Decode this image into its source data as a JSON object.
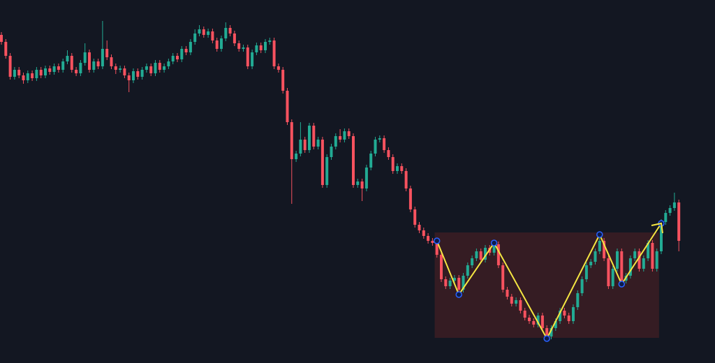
{
  "chart_data": {
    "type": "candlestick",
    "up_color": "#22ab94",
    "down_color": "#f7525f",
    "ylim": [
      0,
      520
    ],
    "candles": [
      [
        470,
        474,
        456,
        460
      ],
      [
        460,
        464,
        436,
        440
      ],
      [
        440,
        444,
        406,
        410
      ],
      [
        410,
        424,
        406,
        420
      ],
      [
        420,
        424,
        408,
        412
      ],
      [
        412,
        416,
        400,
        405
      ],
      [
        405,
        419,
        401,
        415
      ],
      [
        415,
        419,
        404,
        408
      ],
      [
        408,
        424,
        404,
        420
      ],
      [
        420,
        424,
        408,
        412
      ],
      [
        412,
        426,
        408,
        422
      ],
      [
        422,
        426,
        413,
        417
      ],
      [
        417,
        429,
        413,
        425
      ],
      [
        425,
        429,
        416,
        420
      ],
      [
        420,
        436,
        416,
        432
      ],
      [
        432,
        448,
        428,
        440
      ],
      [
        440,
        444,
        416,
        420
      ],
      [
        420,
        424,
        411,
        415
      ],
      [
        415,
        434,
        411,
        430
      ],
      [
        430,
        458,
        426,
        445
      ],
      [
        445,
        449,
        416,
        420
      ],
      [
        420,
        436,
        416,
        432
      ],
      [
        432,
        436,
        421,
        425
      ],
      [
        425,
        490,
        421,
        450
      ],
      [
        450,
        462,
        434,
        438
      ],
      [
        438,
        442,
        421,
        425
      ],
      [
        425,
        429,
        414,
        420
      ],
      [
        420,
        426,
        416,
        422
      ],
      [
        422,
        426,
        408,
        412
      ],
      [
        412,
        416,
        388,
        405
      ],
      [
        405,
        422,
        401,
        418
      ],
      [
        418,
        422,
        406,
        410
      ],
      [
        410,
        424,
        406,
        420
      ],
      [
        420,
        429,
        416,
        425
      ],
      [
        425,
        429,
        411,
        415
      ],
      [
        415,
        434,
        411,
        430
      ],
      [
        430,
        434,
        416,
        420
      ],
      [
        420,
        429,
        416,
        425
      ],
      [
        425,
        436,
        421,
        432
      ],
      [
        432,
        444,
        428,
        440
      ],
      [
        440,
        444,
        431,
        435
      ],
      [
        435,
        454,
        431,
        450
      ],
      [
        450,
        454,
        441,
        445
      ],
      [
        445,
        464,
        441,
        460
      ],
      [
        460,
        478,
        456,
        472
      ],
      [
        472,
        484,
        468,
        478
      ],
      [
        478,
        482,
        466,
        470
      ],
      [
        470,
        479,
        466,
        475
      ],
      [
        475,
        479,
        458,
        462
      ],
      [
        462,
        466,
        446,
        450
      ],
      [
        450,
        469,
        446,
        465
      ],
      [
        465,
        488,
        461,
        480
      ],
      [
        480,
        484,
        468,
        472
      ],
      [
        472,
        476,
        454,
        458
      ],
      [
        458,
        462,
        446,
        450
      ],
      [
        450,
        456,
        446,
        452
      ],
      [
        452,
        456,
        421,
        425
      ],
      [
        425,
        449,
        421,
        445
      ],
      [
        445,
        459,
        441,
        455
      ],
      [
        455,
        459,
        444,
        448
      ],
      [
        448,
        464,
        444,
        460
      ],
      [
        460,
        466,
        456,
        462
      ],
      [
        462,
        466,
        421,
        425
      ],
      [
        425,
        429,
        416,
        420
      ],
      [
        420,
        424,
        386,
        390
      ],
      [
        390,
        394,
        341,
        345
      ],
      [
        345,
        349,
        228,
        292
      ],
      [
        292,
        304,
        288,
        300
      ],
      [
        300,
        345,
        296,
        320
      ],
      [
        320,
        324,
        301,
        305
      ],
      [
        305,
        344,
        301,
        340
      ],
      [
        340,
        344,
        306,
        310
      ],
      [
        310,
        324,
        306,
        320
      ],
      [
        320,
        324,
        251,
        255
      ],
      [
        255,
        299,
        251,
        295
      ],
      [
        295,
        314,
        291,
        310
      ],
      [
        310,
        329,
        306,
        325
      ],
      [
        325,
        335,
        316,
        320
      ],
      [
        320,
        336,
        316,
        332
      ],
      [
        332,
        336,
        321,
        325
      ],
      [
        325,
        329,
        251,
        255
      ],
      [
        255,
        264,
        251,
        260
      ],
      [
        260,
        264,
        232,
        250
      ],
      [
        250,
        284,
        246,
        280
      ],
      [
        280,
        304,
        276,
        300
      ],
      [
        300,
        324,
        296,
        320
      ],
      [
        320,
        326,
        316,
        322
      ],
      [
        322,
        326,
        301,
        305
      ],
      [
        305,
        309,
        291,
        295
      ],
      [
        295,
        299,
        271,
        275
      ],
      [
        275,
        286,
        271,
        282
      ],
      [
        282,
        286,
        271,
        275
      ],
      [
        275,
        279,
        246,
        250
      ],
      [
        250,
        254,
        216,
        220
      ],
      [
        220,
        224,
        194,
        198
      ],
      [
        198,
        202,
        186,
        190
      ],
      [
        190,
        194,
        178,
        182
      ],
      [
        182,
        186,
        171,
        175
      ],
      [
        175,
        179,
        168,
        172
      ],
      [
        172,
        176,
        151,
        155
      ],
      [
        155,
        159,
        116,
        120
      ],
      [
        120,
        124,
        106,
        110
      ],
      [
        110,
        122,
        106,
        118
      ],
      [
        118,
        126,
        114,
        122
      ],
      [
        122,
        126,
        101,
        105
      ],
      [
        105,
        129,
        101,
        125
      ],
      [
        125,
        144,
        121,
        140
      ],
      [
        140,
        154,
        136,
        150
      ],
      [
        150,
        164,
        146,
        160
      ],
      [
        160,
        164,
        144,
        148
      ],
      [
        148,
        169,
        144,
        165
      ],
      [
        165,
        169,
        154,
        158
      ],
      [
        158,
        174,
        154,
        170
      ],
      [
        170,
        174,
        136,
        140
      ],
      [
        140,
        144,
        101,
        105
      ],
      [
        105,
        109,
        91,
        95
      ],
      [
        95,
        99,
        81,
        85
      ],
      [
        85,
        94,
        81,
        90
      ],
      [
        90,
        94,
        71,
        75
      ],
      [
        75,
        79,
        61,
        65
      ],
      [
        65,
        69,
        56,
        60
      ],
      [
        60,
        64,
        51,
        55
      ],
      [
        55,
        72,
        51,
        68
      ],
      [
        68,
        72,
        46,
        50
      ],
      [
        50,
        54,
        34,
        38
      ],
      [
        38,
        54,
        34,
        50
      ],
      [
        50,
        64,
        46,
        60
      ],
      [
        60,
        79,
        56,
        75
      ],
      [
        75,
        79,
        64,
        68
      ],
      [
        68,
        72,
        56,
        60
      ],
      [
        60,
        84,
        56,
        80
      ],
      [
        80,
        104,
        76,
        100
      ],
      [
        100,
        124,
        96,
        120
      ],
      [
        120,
        144,
        116,
        140
      ],
      [
        140,
        149,
        136,
        145
      ],
      [
        145,
        164,
        141,
        160
      ],
      [
        160,
        179,
        156,
        175
      ],
      [
        175,
        179,
        146,
        150
      ],
      [
        150,
        154,
        106,
        110
      ],
      [
        110,
        139,
        106,
        135
      ],
      [
        135,
        164,
        131,
        160
      ],
      [
        160,
        164,
        114,
        118
      ],
      [
        118,
        129,
        114,
        125
      ],
      [
        125,
        154,
        121,
        150
      ],
      [
        150,
        164,
        146,
        160
      ],
      [
        160,
        164,
        131,
        135
      ],
      [
        135,
        154,
        131,
        150
      ],
      [
        150,
        176,
        146,
        172
      ],
      [
        172,
        176,
        131,
        135
      ],
      [
        135,
        164,
        131,
        160
      ],
      [
        160,
        206,
        156,
        202
      ],
      [
        202,
        219,
        198,
        215
      ],
      [
        215,
        226,
        211,
        222
      ],
      [
        222,
        244,
        218,
        230
      ],
      [
        230,
        234,
        160,
        175
      ]
    ],
    "box": {
      "start": 99,
      "end": 150,
      "top": 187,
      "bottom": 36,
      "color": "#3a1d24"
    },
    "zigzag": {
      "color": "#f5e642",
      "points": [
        {
          "index": 99,
          "value": 175
        },
        {
          "index": 104,
          "value": 98
        },
        {
          "index": 112,
          "value": 172
        },
        {
          "index": 124,
          "value": 35
        },
        {
          "index": 136,
          "value": 184
        },
        {
          "index": 141,
          "value": 113
        },
        {
          "index": 150,
          "value": 200
        }
      ]
    }
  }
}
